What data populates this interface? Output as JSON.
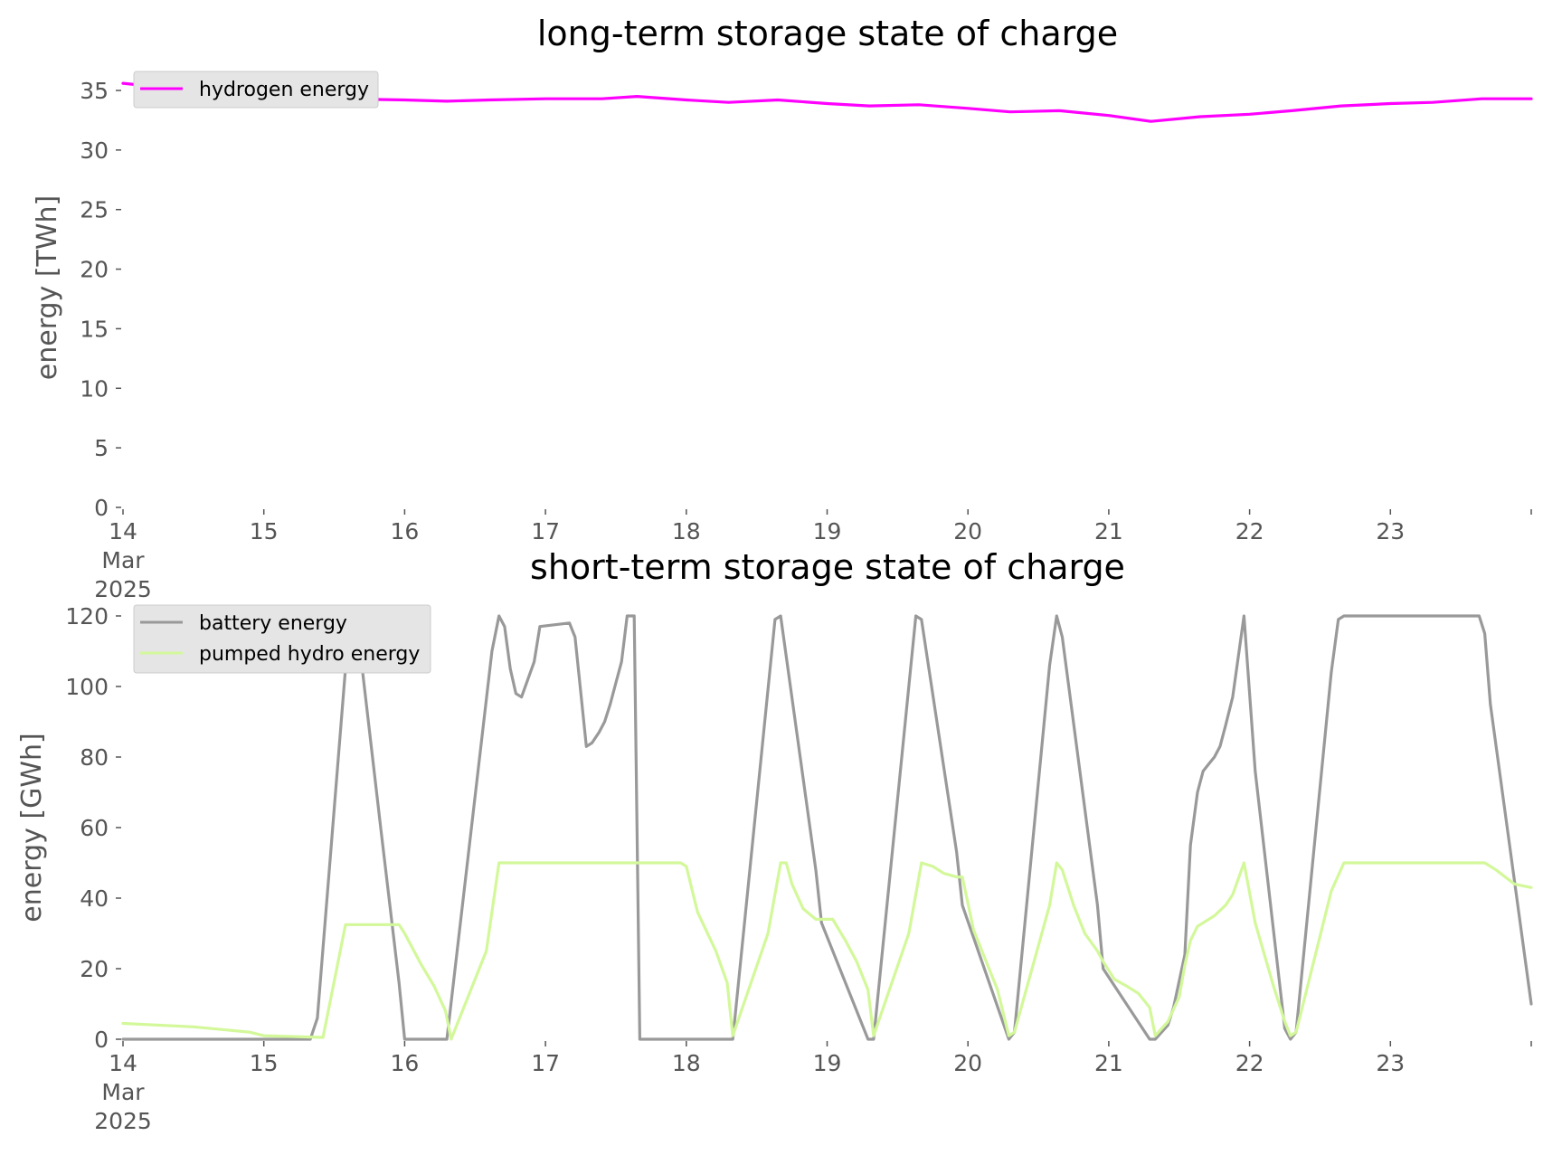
{
  "charts": [
    {
      "title": "long-term storage state of charge",
      "ylabel": "energy [TWh]",
      "yticks": [
        "0",
        "5",
        "10",
        "15",
        "20",
        "25",
        "30",
        "35"
      ],
      "xticks": [
        "14",
        "15",
        "16",
        "17",
        "18",
        "19",
        "20",
        "21",
        "22",
        "23"
      ],
      "xsub": [
        "Mar",
        "2025"
      ],
      "legend": [
        "hydrogen energy"
      ]
    },
    {
      "title": "short-term storage state of charge",
      "ylabel": "energy [GWh]",
      "yticks": [
        "0",
        "20",
        "40",
        "60",
        "80",
        "100",
        "120"
      ],
      "xticks": [
        "14",
        "15",
        "16",
        "17",
        "18",
        "19",
        "20",
        "21",
        "22",
        "23"
      ],
      "xsub": [
        "Mar",
        "2025"
      ],
      "legend": [
        "battery energy",
        "pumped hydro energy"
      ]
    }
  ],
  "chart_data": [
    {
      "type": "line",
      "title": "long-term storage state of charge",
      "ylabel": "energy [TWh]",
      "x_unit": "day of March 2025",
      "xlim": [
        14,
        24
      ],
      "ylim": [
        0,
        37
      ],
      "yticks": [
        0,
        5,
        10,
        15,
        20,
        25,
        30,
        35
      ],
      "grid": false,
      "legend_position": "top-left",
      "series": [
        {
          "name": "hydrogen energy",
          "color": "#ff00ff",
          "x": [
            14.0,
            14.5,
            15.0,
            15.5,
            16.0,
            16.3,
            16.6,
            17.0,
            17.4,
            17.65,
            18.0,
            18.3,
            18.65,
            19.0,
            19.3,
            19.65,
            20.0,
            20.3,
            20.65,
            21.0,
            21.3,
            21.65,
            22.0,
            22.3,
            22.65,
            23.0,
            23.3,
            23.65,
            24.0
          ],
          "y": [
            35.6,
            35.0,
            34.6,
            34.3,
            34.2,
            34.1,
            34.2,
            34.3,
            34.3,
            34.5,
            34.2,
            34.0,
            34.2,
            33.9,
            33.7,
            33.8,
            33.5,
            33.2,
            33.3,
            32.9,
            32.4,
            32.8,
            33.0,
            33.3,
            33.7,
            33.9,
            34.0,
            34.3,
            34.3
          ]
        }
      ]
    },
    {
      "type": "line",
      "title": "short-term storage state of charge",
      "ylabel": "energy [GWh]",
      "x_unit": "day of March 2025",
      "xlim": [
        14,
        24
      ],
      "ylim": [
        0,
        120
      ],
      "yticks": [
        0,
        20,
        40,
        60,
        80,
        100,
        120
      ],
      "grid": false,
      "legend_position": "top-left",
      "series": [
        {
          "name": "battery energy",
          "color": "#999999",
          "x": [
            14.0,
            15.0,
            15.33,
            15.38,
            15.6,
            15.67,
            15.83,
            15.96,
            16.0,
            16.25,
            16.3,
            16.62,
            16.67,
            16.71,
            16.75,
            16.79,
            16.83,
            16.92,
            16.96,
            17.17,
            17.21,
            17.29,
            17.33,
            17.38,
            17.42,
            17.46,
            17.5,
            17.54,
            17.58,
            17.63,
            17.67,
            17.96,
            18.0,
            18.29,
            18.33,
            18.63,
            18.67,
            18.92,
            18.96,
            19.29,
            19.33,
            19.63,
            19.67,
            19.92,
            19.96,
            20.29,
            20.33,
            20.58,
            20.63,
            20.67,
            20.92,
            20.96,
            21.29,
            21.33,
            21.42,
            21.46,
            21.54,
            21.58,
            21.63,
            21.67,
            21.71,
            21.75,
            21.79,
            21.83,
            21.88,
            21.96,
            22.04,
            22.25,
            22.29,
            22.33,
            22.58,
            22.63,
            22.67,
            23.63,
            23.67,
            23.71,
            24.0
          ],
          "y": [
            0,
            0,
            0,
            6,
            115,
            115,
            60,
            16,
            0,
            0,
            0,
            110,
            120,
            117,
            105,
            98,
            97,
            107,
            117,
            118,
            114,
            83,
            84,
            87,
            90,
            95,
            101,
            107,
            120,
            120,
            0,
            0,
            0,
            0,
            0,
            119,
            120,
            48,
            33,
            0,
            0,
            120,
            119,
            53,
            38,
            0,
            2,
            106,
            120,
            114,
            38,
            20,
            0,
            0,
            4,
            9,
            24,
            55,
            70,
            76,
            78,
            80,
            83,
            89,
            97,
            120,
            76,
            3,
            0,
            2,
            104,
            119,
            120,
            120,
            115,
            95,
            10
          ]
        },
        {
          "name": "pumped hydro energy",
          "color": "#d3f89a",
          "x": [
            14.0,
            14.5,
            14.9,
            15.0,
            15.42,
            15.58,
            15.96,
            16.0,
            16.12,
            16.21,
            16.29,
            16.33,
            16.58,
            16.67,
            16.96,
            17.2,
            17.6,
            17.96,
            18.0,
            18.08,
            18.21,
            18.29,
            18.33,
            18.58,
            18.67,
            18.71,
            18.75,
            18.83,
            18.92,
            18.96,
            19.04,
            19.13,
            19.21,
            19.29,
            19.33,
            19.58,
            19.67,
            19.75,
            19.83,
            19.92,
            19.96,
            20.04,
            20.13,
            20.21,
            20.29,
            20.33,
            20.58,
            20.63,
            20.67,
            20.75,
            20.83,
            20.92,
            20.96,
            21.04,
            21.13,
            21.21,
            21.29,
            21.33,
            21.42,
            21.5,
            21.54,
            21.58,
            21.63,
            21.67,
            21.75,
            21.83,
            21.88,
            21.96,
            22.04,
            22.17,
            22.25,
            22.29,
            22.33,
            22.58,
            22.67,
            23.67,
            23.75,
            23.88,
            24.0
          ],
          "y": [
            4.5,
            3.5,
            2,
            1,
            0.5,
            32.5,
            32.5,
            30,
            21,
            15,
            8,
            0,
            25,
            50,
            50,
            50,
            50,
            50,
            49,
            36,
            25,
            16,
            1,
            30,
            50,
            50,
            44,
            37,
            34,
            34,
            34,
            28,
            22,
            14,
            1,
            30,
            50,
            49,
            47,
            46,
            46,
            31,
            22,
            14,
            1,
            2,
            38,
            50,
            48,
            38,
            30,
            25,
            22,
            17,
            15,
            13,
            9,
            1,
            5,
            12,
            21,
            28,
            32,
            33,
            35,
            38,
            41,
            50,
            33,
            15,
            5,
            1,
            2,
            42,
            50,
            50,
            48,
            44,
            43
          ]
        }
      ]
    }
  ]
}
